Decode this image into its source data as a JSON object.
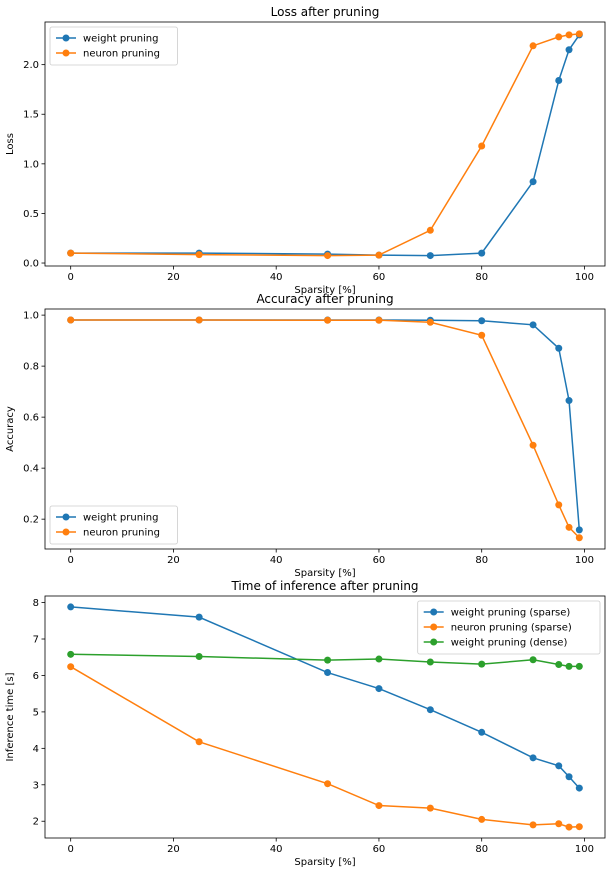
{
  "colors": {
    "blue": "#1f77b4",
    "orange": "#ff7f0e",
    "green": "#2ca02c"
  },
  "chart_data": [
    {
      "type": "line",
      "title": "Loss after pruning",
      "xlabel": "Sparsity [%]",
      "ylabel": "Loss",
      "xlim": [
        -5,
        104
      ],
      "ylim": [
        -0.03,
        2.43
      ],
      "xticks": [
        0,
        20,
        40,
        60,
        80,
        100
      ],
      "yticks": [
        0.0,
        0.5,
        1.0,
        1.5,
        2.0
      ],
      "ytick_labels": [
        "0.0",
        "0.5",
        "1.0",
        "1.5",
        "2.0"
      ],
      "legend": "top-left",
      "series": [
        {
          "name": "weight pruning",
          "color": "#1f77b4",
          "x": [
            0,
            25,
            50,
            60,
            70,
            80,
            90,
            95,
            97,
            99
          ],
          "y": [
            0.1,
            0.1,
            0.09,
            0.08,
            0.075,
            0.1,
            0.82,
            1.84,
            2.15,
            2.3
          ]
        },
        {
          "name": "neuron pruning",
          "color": "#ff7f0e",
          "x": [
            0,
            25,
            50,
            60,
            70,
            80,
            90,
            95,
            97,
            99
          ],
          "y": [
            0.1,
            0.085,
            0.075,
            0.08,
            0.33,
            1.18,
            2.19,
            2.28,
            2.3,
            2.31
          ]
        }
      ]
    },
    {
      "type": "line",
      "title": "Accuracy after pruning",
      "xlabel": "Sparsity [%]",
      "ylabel": "Accuracy",
      "xlim": [
        -5,
        104
      ],
      "ylim": [
        0.083,
        1.024
      ],
      "xticks": [
        0,
        20,
        40,
        60,
        80,
        100
      ],
      "yticks": [
        0.2,
        0.4,
        0.6,
        0.8,
        1.0
      ],
      "ytick_labels": [
        "0.2",
        "0.4",
        "0.6",
        "0.8",
        "1.0"
      ],
      "legend": "bottom-left",
      "series": [
        {
          "name": "weight pruning",
          "color": "#1f77b4",
          "x": [
            0,
            25,
            50,
            60,
            70,
            80,
            90,
            95,
            97,
            99
          ],
          "y": [
            0.981,
            0.981,
            0.981,
            0.981,
            0.98,
            0.978,
            0.962,
            0.87,
            0.665,
            0.158
          ]
        },
        {
          "name": "neuron pruning",
          "color": "#ff7f0e",
          "x": [
            0,
            25,
            50,
            60,
            70,
            80,
            90,
            95,
            97,
            99
          ],
          "y": [
            0.981,
            0.981,
            0.98,
            0.98,
            0.972,
            0.921,
            0.49,
            0.256,
            0.168,
            0.127
          ]
        }
      ]
    },
    {
      "type": "line",
      "title": "Time of inference after pruning",
      "xlabel": "Sparsity [%]",
      "ylabel": "Inference time [s]",
      "xlim": [
        -5,
        104
      ],
      "ylim": [
        1.54,
        8.18
      ],
      "xticks": [
        0,
        20,
        40,
        60,
        80,
        100
      ],
      "yticks": [
        2,
        3,
        4,
        5,
        6,
        7,
        8
      ],
      "ytick_labels": [
        "2",
        "3",
        "4",
        "5",
        "6",
        "7",
        "8"
      ],
      "legend": "top-right",
      "series": [
        {
          "name": "weight pruning (sparse)",
          "color": "#1f77b4",
          "x": [
            0,
            25,
            50,
            60,
            70,
            80,
            90,
            95,
            97,
            99
          ],
          "y": [
            7.88,
            7.6,
            6.08,
            5.64,
            5.06,
            4.44,
            3.74,
            3.52,
            3.22,
            2.91
          ]
        },
        {
          "name": "neuron pruning (sparse)",
          "color": "#ff7f0e",
          "x": [
            0,
            25,
            50,
            60,
            70,
            80,
            90,
            95,
            97,
            99
          ],
          "y": [
            6.24,
            4.18,
            3.03,
            2.43,
            2.36,
            2.05,
            1.9,
            1.93,
            1.84,
            1.85
          ]
        },
        {
          "name": "weight pruning (dense)",
          "color": "#2ca02c",
          "x": [
            0,
            25,
            50,
            60,
            70,
            80,
            90,
            95,
            97,
            99
          ],
          "y": [
            6.58,
            6.52,
            6.42,
            6.45,
            6.37,
            6.31,
            6.43,
            6.3,
            6.25,
            6.25
          ]
        }
      ]
    }
  ]
}
